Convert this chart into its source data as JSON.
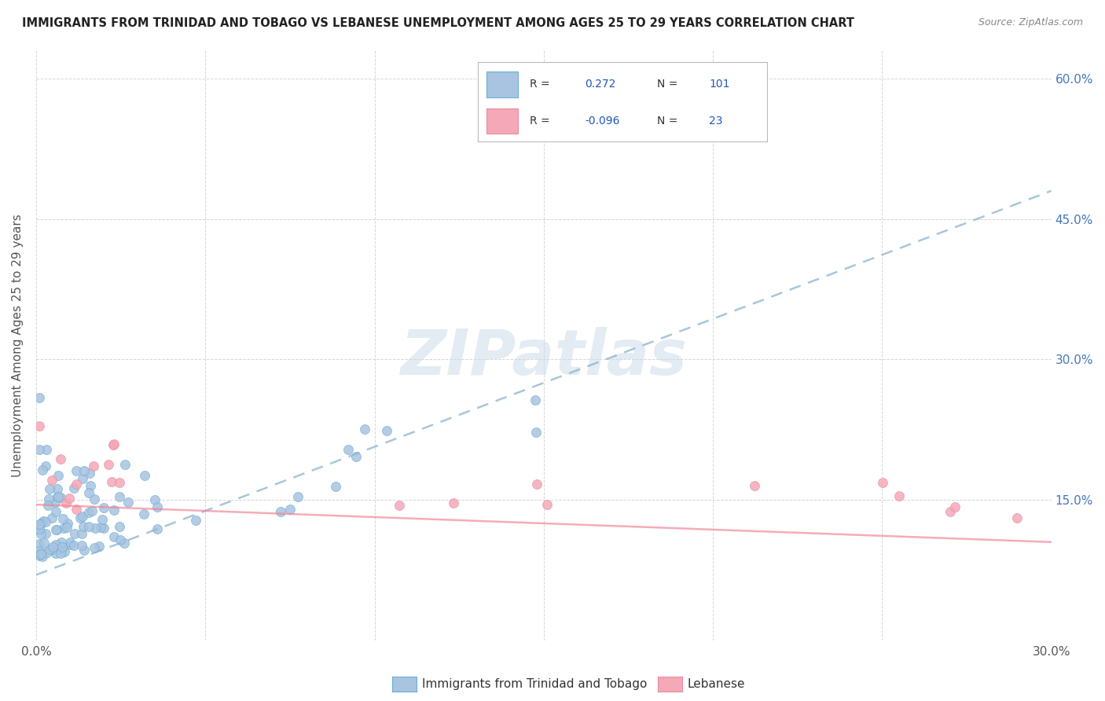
{
  "title": "IMMIGRANTS FROM TRINIDAD AND TOBAGO VS LEBANESE UNEMPLOYMENT AMONG AGES 25 TO 29 YEARS CORRELATION CHART",
  "source": "Source: ZipAtlas.com",
  "ylabel": "Unemployment Among Ages 25 to 29 years",
  "xlim": [
    0.0,
    0.3
  ],
  "ylim": [
    0.0,
    0.63
  ],
  "blue_R": 0.272,
  "blue_N": 101,
  "pink_R": -0.096,
  "pink_N": 23,
  "blue_color": "#a8c4e0",
  "blue_edge_color": "#6baed6",
  "pink_color": "#f4a8b8",
  "pink_edge_color": "#e88fa0",
  "trendline_blue_color": "#8ab4d0",
  "trendline_pink_color": "#f08090",
  "watermark": "ZIPatlas",
  "legend_blue_label": "Immigrants from Trinidad and Tobago",
  "legend_pink_label": "Lebanese",
  "background_color": "#ffffff",
  "grid_color": "#cccccc",
  "blue_trend_x0": 0.0,
  "blue_trend_y0": 0.07,
  "blue_trend_x1": 0.3,
  "blue_trend_y1": 0.48,
  "pink_trend_x0": 0.0,
  "pink_trend_y0": 0.145,
  "pink_trend_x1": 0.3,
  "pink_trend_y1": 0.105
}
